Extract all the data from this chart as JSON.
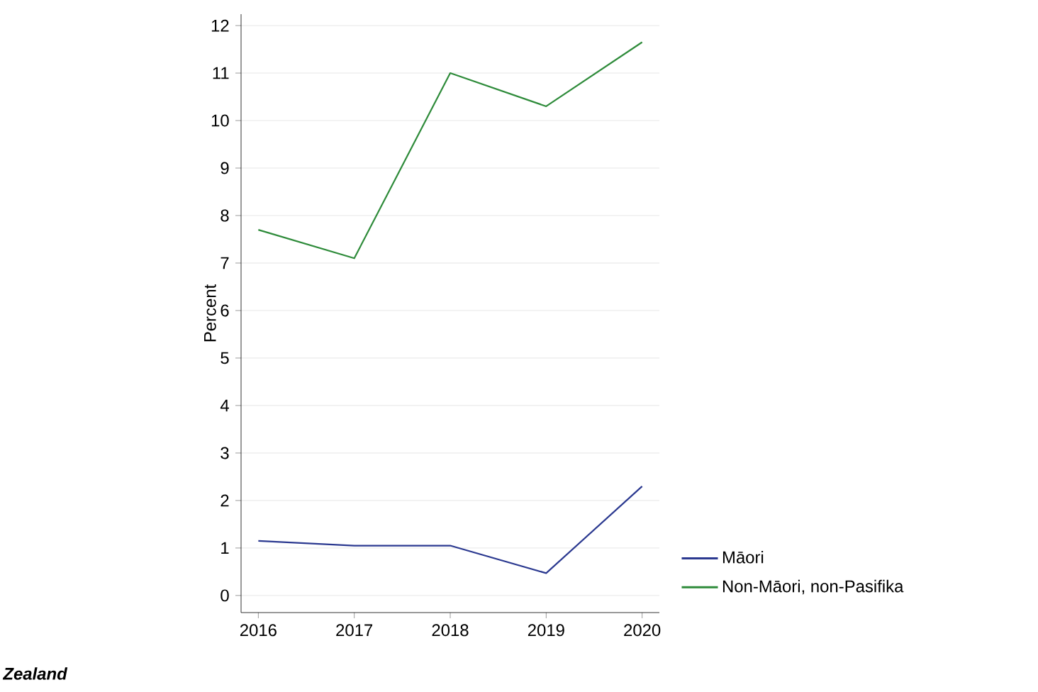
{
  "chart_data": {
    "type": "line",
    "ylabel": "Percent",
    "x": [
      2016,
      2017,
      2018,
      2019,
      2020
    ],
    "series": [
      {
        "name": "Māori",
        "color": "#2b3990",
        "values": [
          1.15,
          1.05,
          1.05,
          0.47,
          2.3
        ]
      },
      {
        "name": "Non-Māori, non-Pasifika",
        "color": "#2e8b3a",
        "values": [
          7.7,
          7.1,
          11.0,
          10.3,
          11.65
        ]
      }
    ],
    "xlim": [
      2015.82,
      2020.18
    ],
    "ylim": [
      -0.36,
      12.24
    ],
    "xticks": [
      2016,
      2017,
      2018,
      2019,
      2020
    ],
    "yticks": [
      0,
      1,
      2,
      3,
      4,
      5,
      6,
      7,
      8,
      9,
      10,
      11,
      12
    ],
    "grid": "y",
    "legend": "right",
    "marker": "none",
    "line_style": "solid",
    "annotations": [
      "Zealand"
    ]
  }
}
